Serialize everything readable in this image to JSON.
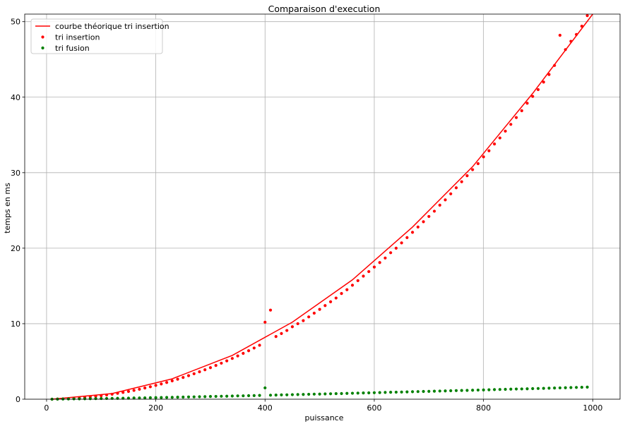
{
  "chart_data": {
    "type": "scatter",
    "title": "Comparaison d'execution",
    "xlabel": "puissance",
    "ylabel": "temps en ms",
    "xlim": [
      -40,
      1050
    ],
    "ylim": [
      0,
      51
    ],
    "xticks": [
      0,
      200,
      400,
      600,
      800,
      1000
    ],
    "yticks": [
      0,
      10,
      20,
      30,
      40,
      50
    ],
    "grid": true,
    "legend_position": "top-left",
    "series": [
      {
        "name": "courbe théorique tri insertion",
        "kind": "line",
        "color": "#ff0000",
        "x": [
          10,
          120,
          230,
          340,
          450,
          560,
          670,
          780,
          890,
          1000
        ],
        "y": [
          0.0,
          0.75,
          2.7,
          5.8,
          10.2,
          15.8,
          22.8,
          30.8,
          40.5,
          51.0
        ]
      },
      {
        "name": "tri insertion",
        "kind": "scatter",
        "color": "#ff0000",
        "x": [
          10,
          20,
          30,
          40,
          50,
          60,
          70,
          80,
          90,
          100,
          110,
          120,
          130,
          140,
          150,
          160,
          170,
          180,
          190,
          200,
          210,
          220,
          230,
          240,
          250,
          260,
          270,
          280,
          290,
          300,
          310,
          320,
          330,
          340,
          350,
          360,
          370,
          380,
          390,
          400,
          410,
          420,
          430,
          440,
          450,
          460,
          470,
          480,
          490,
          500,
          510,
          520,
          530,
          540,
          550,
          560,
          570,
          580,
          590,
          600,
          610,
          620,
          630,
          640,
          650,
          660,
          670,
          680,
          690,
          700,
          710,
          720,
          730,
          740,
          750,
          760,
          770,
          780,
          790,
          800,
          810,
          820,
          830,
          840,
          850,
          860,
          870,
          880,
          890,
          900,
          910,
          920,
          930,
          940,
          950,
          960,
          970,
          980,
          990
        ],
        "y": [
          0.0,
          0.02,
          0.05,
          0.08,
          0.12,
          0.17,
          0.23,
          0.3,
          0.38,
          0.47,
          0.56,
          0.66,
          0.78,
          0.9,
          1.03,
          1.17,
          1.32,
          1.48,
          1.65,
          1.83,
          2.02,
          2.22,
          2.43,
          2.65,
          2.88,
          3.12,
          3.37,
          3.63,
          3.9,
          4.18,
          4.47,
          4.77,
          5.08,
          5.4,
          5.73,
          6.07,
          6.42,
          6.78,
          7.15,
          10.2,
          11.8,
          8.3,
          8.7,
          9.1,
          9.6,
          10.0,
          10.4,
          10.9,
          11.4,
          11.9,
          12.4,
          12.9,
          13.4,
          14.0,
          14.5,
          15.1,
          15.7,
          16.3,
          16.9,
          17.5,
          18.1,
          18.7,
          19.4,
          20.0,
          20.7,
          21.4,
          22.1,
          22.8,
          23.5,
          24.2,
          24.9,
          25.7,
          26.4,
          27.2,
          28.0,
          28.8,
          29.6,
          30.4,
          31.2,
          32.1,
          32.9,
          33.8,
          34.6,
          35.5,
          36.4,
          37.3,
          38.2,
          39.2,
          40.1,
          41.0,
          42.0,
          43.0,
          44.2,
          48.2,
          46.3,
          47.4,
          48.3,
          49.4,
          50.8
        ]
      },
      {
        "name": "tri fusion",
        "kind": "scatter",
        "color": "#008000",
        "x": [
          10,
          20,
          30,
          40,
          50,
          60,
          70,
          80,
          90,
          100,
          110,
          120,
          130,
          140,
          150,
          160,
          170,
          180,
          190,
          200,
          210,
          220,
          230,
          240,
          250,
          260,
          270,
          280,
          290,
          300,
          310,
          320,
          330,
          340,
          350,
          360,
          370,
          380,
          390,
          400,
          410,
          420,
          430,
          440,
          450,
          460,
          470,
          480,
          490,
          500,
          510,
          520,
          530,
          540,
          550,
          560,
          570,
          580,
          590,
          600,
          610,
          620,
          630,
          640,
          650,
          660,
          670,
          680,
          690,
          700,
          710,
          720,
          730,
          740,
          750,
          760,
          770,
          780,
          790,
          800,
          810,
          820,
          830,
          840,
          850,
          860,
          870,
          880,
          890,
          900,
          910,
          920,
          930,
          940,
          950,
          960,
          970,
          980,
          990
        ],
        "y": [
          0.0,
          0.01,
          0.02,
          0.03,
          0.04,
          0.05,
          0.06,
          0.07,
          0.08,
          0.09,
          0.1,
          0.11,
          0.12,
          0.13,
          0.14,
          0.16,
          0.17,
          0.18,
          0.2,
          0.21,
          0.22,
          0.24,
          0.25,
          0.27,
          0.28,
          0.3,
          0.31,
          0.33,
          0.34,
          0.36,
          0.37,
          0.39,
          0.4,
          0.42,
          0.44,
          0.45,
          0.47,
          0.48,
          0.5,
          1.5,
          0.53,
          0.55,
          0.57,
          0.58,
          0.6,
          0.62,
          0.63,
          0.65,
          0.67,
          0.68,
          0.7,
          0.72,
          0.74,
          0.75,
          0.77,
          0.79,
          0.81,
          0.83,
          0.84,
          0.86,
          0.88,
          0.9,
          0.92,
          0.93,
          0.95,
          0.97,
          0.99,
          1.01,
          1.03,
          1.04,
          1.06,
          1.08,
          1.1,
          1.12,
          1.14,
          1.16,
          1.17,
          1.19,
          1.21,
          1.23,
          1.25,
          1.27,
          1.29,
          1.31,
          1.33,
          1.35,
          1.36,
          1.38,
          1.4,
          1.42,
          1.44,
          1.46,
          1.48,
          1.5,
          1.52,
          1.54,
          1.56,
          1.58,
          1.6
        ]
      }
    ]
  }
}
